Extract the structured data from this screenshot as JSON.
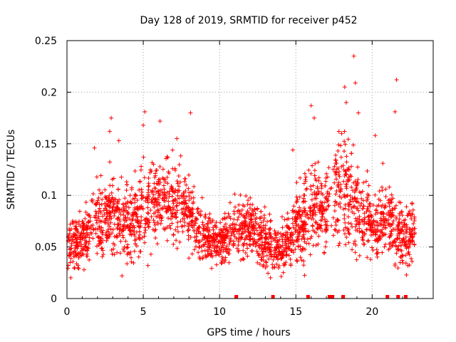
{
  "chart_data": {
    "type": "scatter",
    "title": "Day 128 of 2019, SRMTID for receiver p452",
    "xlabel": "GPS time / hours",
    "ylabel": "SRMTID / TECUs",
    "xlim": [
      0,
      24
    ],
    "ylim": [
      0,
      0.25
    ],
    "xticks": [
      0,
      5,
      10,
      15,
      20
    ],
    "xtick_labels": [
      "0",
      "5",
      "10",
      "15",
      "20"
    ],
    "yticks": [
      0,
      0.05,
      0.1,
      0.15,
      0.2,
      0.25
    ],
    "ytick_labels": [
      "0",
      "0.05",
      "0.1",
      "0.15",
      "0.2",
      "0.25"
    ],
    "grid": true,
    "marker": "plus",
    "color": "#ff0000",
    "gap_markers_x": [
      11.1,
      13.5,
      15.8,
      17.2,
      17.4,
      18.1,
      21.0,
      21.7,
      22.2
    ],
    "envelope": [
      {
        "t": 0.0,
        "c": 0.055,
        "s": 0.016
      },
      {
        "t": 1.0,
        "c": 0.055,
        "s": 0.016
      },
      {
        "t": 2.0,
        "c": 0.075,
        "s": 0.022
      },
      {
        "t": 3.0,
        "c": 0.085,
        "s": 0.026
      },
      {
        "t": 4.0,
        "c": 0.07,
        "s": 0.022
      },
      {
        "t": 5.0,
        "c": 0.085,
        "s": 0.026
      },
      {
        "t": 6.0,
        "c": 0.095,
        "s": 0.022
      },
      {
        "t": 7.0,
        "c": 0.095,
        "s": 0.022
      },
      {
        "t": 8.0,
        "c": 0.085,
        "s": 0.022
      },
      {
        "t": 9.0,
        "c": 0.06,
        "s": 0.016
      },
      {
        "t": 10.0,
        "c": 0.055,
        "s": 0.014
      },
      {
        "t": 11.0,
        "c": 0.07,
        "s": 0.018
      },
      {
        "t": 12.0,
        "c": 0.07,
        "s": 0.02
      },
      {
        "t": 13.0,
        "c": 0.055,
        "s": 0.016
      },
      {
        "t": 14.0,
        "c": 0.045,
        "s": 0.016
      },
      {
        "t": 15.0,
        "c": 0.07,
        "s": 0.022
      },
      {
        "t": 16.0,
        "c": 0.09,
        "s": 0.028
      },
      {
        "t": 17.0,
        "c": 0.085,
        "s": 0.026
      },
      {
        "t": 18.0,
        "c": 0.11,
        "s": 0.036
      },
      {
        "t": 19.0,
        "c": 0.09,
        "s": 0.03
      },
      {
        "t": 20.0,
        "c": 0.07,
        "s": 0.022
      },
      {
        "t": 21.0,
        "c": 0.075,
        "s": 0.025
      },
      {
        "t": 22.0,
        "c": 0.06,
        "s": 0.02
      },
      {
        "t": 22.8,
        "c": 0.065,
        "s": 0.018
      }
    ],
    "outliers": [
      {
        "x": 18.8,
        "y": 0.235
      },
      {
        "x": 21.6,
        "y": 0.212
      },
      {
        "x": 18.2,
        "y": 0.205
      },
      {
        "x": 18.9,
        "y": 0.209
      },
      {
        "x": 5.1,
        "y": 0.181
      },
      {
        "x": 8.1,
        "y": 0.18
      },
      {
        "x": 2.9,
        "y": 0.175
      },
      {
        "x": 6.1,
        "y": 0.172
      },
      {
        "x": 16.0,
        "y": 0.187
      },
      {
        "x": 21.5,
        "y": 0.181
      },
      {
        "x": 18.3,
        "y": 0.19
      },
      {
        "x": 19.1,
        "y": 0.18
      },
      {
        "x": 5.0,
        "y": 0.168
      },
      {
        "x": 16.2,
        "y": 0.175
      },
      {
        "x": 20.2,
        "y": 0.158
      },
      {
        "x": 14.8,
        "y": 0.144
      },
      {
        "x": 1.8,
        "y": 0.146
      },
      {
        "x": 3.4,
        "y": 0.153
      },
      {
        "x": 2.8,
        "y": 0.162
      },
      {
        "x": 7.2,
        "y": 0.155
      },
      {
        "x": 18.0,
        "y": 0.16
      },
      {
        "x": 17.8,
        "y": 0.149
      },
      {
        "x": 20.7,
        "y": 0.131
      }
    ]
  }
}
